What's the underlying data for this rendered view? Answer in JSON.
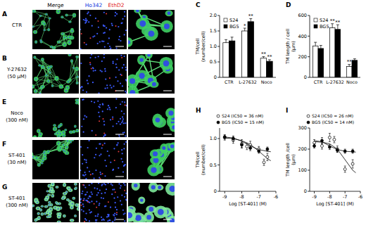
{
  "micrographs": {
    "headers": [
      "Merge",
      "Ho342",
      "EthD2"
    ],
    "rows": [
      {
        "panel": "A",
        "label": [
          "CTR"
        ]
      },
      {
        "panel": "B",
        "label": [
          "Y-27632",
          "(50 μM)"
        ]
      },
      {
        "panel": "E",
        "label": [
          "Noco",
          "(300 nM)"
        ]
      },
      {
        "panel": "F",
        "label": [
          "ST-401",
          "(30 nM)"
        ]
      },
      {
        "panel": "G",
        "label": [
          "ST-401",
          "(300 nM)"
        ]
      }
    ]
  },
  "chart_data": [
    {
      "panel": "C",
      "type": "bar",
      "y_label": [
        "TM/cell",
        "(number/cell)"
      ],
      "categories": [
        "CTR",
        "L-27632",
        "Noco"
      ],
      "series": [
        {
          "name": "S24",
          "color": "#ffffff",
          "values": [
            1.12,
            1.5,
            0.62
          ],
          "errors": [
            0.1,
            0.09,
            0.05
          ],
          "significance": [
            null,
            "*",
            "**"
          ]
        },
        {
          "name": "BG5",
          "color": "#000000",
          "values": [
            1.18,
            1.8,
            0.52
          ],
          "errors": [
            0.12,
            0.1,
            0.05
          ],
          "significance": [
            null,
            "**",
            "**"
          ]
        }
      ],
      "ylim": [
        0,
        2
      ],
      "yticks": [
        0,
        0.5,
        {
          "value": 1,
          "label": "1.0"
        },
        1.5,
        {
          "value": 2,
          "label": "2.0"
        }
      ],
      "legend": "upper-left",
      "grid": false
    },
    {
      "panel": "D",
      "type": "bar",
      "y_label": [
        "TM length / cell",
        "(μm)"
      ],
      "categories": [
        "CTR",
        "L-27632",
        "Noco"
      ],
      "series": [
        {
          "name": "S24",
          "color": "#ffffff",
          "values": [
            305,
            480,
            105
          ],
          "errors": [
            35,
            40,
            20
          ],
          "significance": [
            null,
            "**",
            "**"
          ]
        },
        {
          "name": "BG5",
          "color": "#000000",
          "values": [
            280,
            465,
            165
          ],
          "errors": [
            30,
            45,
            15
          ],
          "significance": [
            null,
            "**",
            null
          ]
        }
      ],
      "ylim": [
        0,
        600
      ],
      "yticks": [
        0,
        200,
        400,
        600
      ],
      "legend": "upper-left",
      "grid": false
    },
    {
      "panel": "H",
      "type": "scatter",
      "x_label": "Log [ST-401] (M)",
      "y_label": [
        "TM/cell",
        "(number/cell)"
      ],
      "xlim": [
        -9.3,
        -6
      ],
      "xticks": [
        -9,
        -8,
        -7,
        -6
      ],
      "ylim": [
        0,
        1.2
      ],
      "yticks": [
        0,
        0.5,
        {
          "value": 1,
          "label": "1.0"
        }
      ],
      "legend": "top",
      "grid": false,
      "series": [
        {
          "name": "S24 (IC50 = 36 nM)",
          "type": "scatter",
          "marker": "open-circle",
          "color": "#000000",
          "x": [
            -9,
            -8.5,
            -8,
            -7.7,
            -7.5,
            -7,
            -6.7,
            -6.5
          ],
          "values": [
            1.02,
            0.97,
            0.9,
            0.85,
            0.88,
            0.8,
            0.55,
            0.65
          ],
          "errors": [
            0.05,
            0.06,
            0.08,
            0.06,
            0.07,
            0.05,
            0.06,
            0.07
          ]
        },
        {
          "name": "BG5 (IC50 = 15 nM)",
          "type": "scatter",
          "marker": "filled-circle",
          "color": "#000000",
          "x": [
            -9,
            -8.5,
            -8,
            -7.5,
            -7,
            -6.5
          ],
          "values": [
            1.03,
            1.0,
            0.88,
            0.82,
            0.76,
            0.8
          ],
          "errors": [
            0.04,
            0.05,
            0.05,
            0.05,
            0.04,
            0.04
          ]
        },
        {
          "type": "line",
          "color": "#000000",
          "x": [
            -9,
            -8.5,
            -8,
            -7.5,
            -7,
            -6.5,
            -6.3
          ],
          "values": [
            1.01,
            1.0,
            0.96,
            0.89,
            0.76,
            0.62,
            0.58
          ]
        },
        {
          "type": "line",
          "color": "#000000",
          "x": [
            -9,
            -8.5,
            -8,
            -7.5,
            -7,
            -6.5,
            -6.3
          ],
          "values": [
            1.03,
            1.01,
            0.95,
            0.86,
            0.79,
            0.76,
            0.75
          ]
        }
      ]
    },
    {
      "panel": "I",
      "type": "scatter",
      "x_label": "Log [ST-401] (M)",
      "y_label": [
        "TM length /cell",
        "(μm)"
      ],
      "xlim": [
        -9.3,
        -6
      ],
      "xticks": [
        -9,
        -8,
        -7,
        -6
      ],
      "ylim": [
        0,
        300
      ],
      "yticks": [
        0,
        100,
        200,
        300
      ],
      "legend": "top",
      "grid": false,
      "series": [
        {
          "name": "S24 (IC50 = 26 nM)",
          "type": "scatter",
          "marker": "open-circle",
          "color": "#000000",
          "x": [
            -9,
            -8.5,
            -8,
            -7.7,
            -7.5,
            -7,
            -6.5
          ],
          "values": [
            230,
            215,
            255,
            245,
            200,
            105,
            130
          ],
          "errors": [
            15,
            15,
            20,
            15,
            15,
            15,
            20
          ]
        },
        {
          "name": "BG5 (IC50 = 14 nM)",
          "type": "scatter",
          "marker": "filled-circle",
          "color": "#000000",
          "x": [
            -9,
            -8.5,
            -8,
            -7.5,
            -7,
            -6.5
          ],
          "values": [
            215,
            240,
            210,
            195,
            190,
            190
          ],
          "errors": [
            10,
            15,
            12,
            10,
            10,
            10
          ]
        },
        {
          "type": "line",
          "color": "#000000",
          "x": [
            -9,
            -8.5,
            -8,
            -7.5,
            -7,
            -6.5,
            -6.3
          ],
          "values": [
            235,
            233,
            225,
            200,
            150,
            100,
            88
          ]
        },
        {
          "type": "line",
          "color": "#000000",
          "x": [
            -9,
            -8.5,
            -8,
            -7.5,
            -7,
            -6.5,
            -6.3
          ],
          "values": [
            240,
            235,
            215,
            198,
            190,
            187,
            186
          ]
        }
      ]
    }
  ]
}
